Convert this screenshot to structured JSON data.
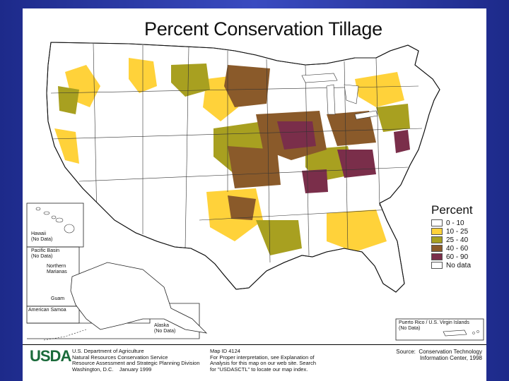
{
  "title": "Percent Conservation Tillage",
  "legend": {
    "title": "Percent",
    "items": [
      {
        "label": "0 - 10",
        "color": "#ffffff"
      },
      {
        "label": "10 - 25",
        "color": "#ffd23a"
      },
      {
        "label": "25 - 40",
        "color": "#a8a020"
      },
      {
        "label": "40 - 60",
        "color": "#8a5a2a"
      },
      {
        "label": "60 - 90",
        "color": "#7a2e4a"
      },
      {
        "label": "No data",
        "color": "#ffffff"
      }
    ]
  },
  "insets": {
    "hawaii": "Hawaii\n(No Data)",
    "pacific_basin": "Pacific Basin\n(No Data)",
    "northern_marianas": "Northern\nMarianas",
    "guam": "Guam",
    "american_samoa": "American Samoa",
    "alaska": "Alaska\n(No Data)",
    "puerto_rico": "Puerto Rico / U.S. Virgin Islands\n(No Data)"
  },
  "footer": {
    "logo": "USDA",
    "agency": "U.S. Department of Agriculture\nNatural Resources Conservation Service\nResource Assessment and Strategic Planning Division\nWashington, D.C.    January 1999",
    "map_id": "Map ID 4124\nFor Proper interpretation, see Explanation of\nAnalysis for this map on our web site. Search\nfor \"USDASCTL\" to locate our map index.",
    "source": "Source:  Conservation Technology\nInformation Center, 1998"
  }
}
